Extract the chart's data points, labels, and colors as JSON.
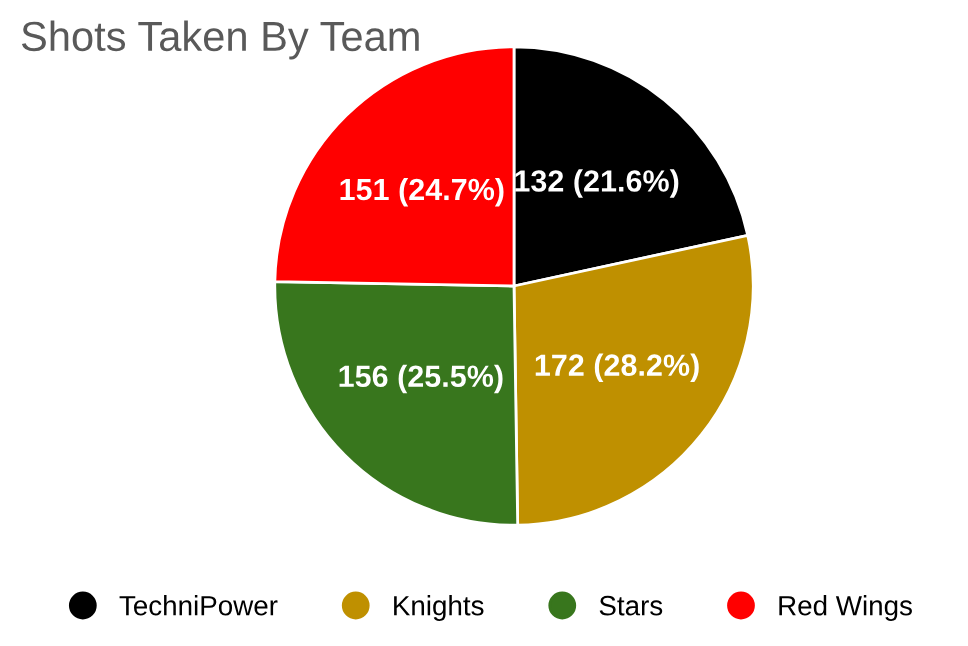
{
  "chart_data": {
    "type": "pie",
    "title": "Shots Taken By Team",
    "categories": [
      "TechniPower",
      "Knights",
      "Stars",
      "Red Wings"
    ],
    "values": [
      132,
      172,
      156,
      151
    ],
    "value_labels": [
      "132 (21.6%)",
      "172 (28.2%)",
      "156 (25.5%)",
      "151 (24.7%)"
    ],
    "colors": [
      "#000000",
      "#bf9000",
      "#38761d",
      "#ff0000"
    ],
    "legend": "bottom"
  }
}
